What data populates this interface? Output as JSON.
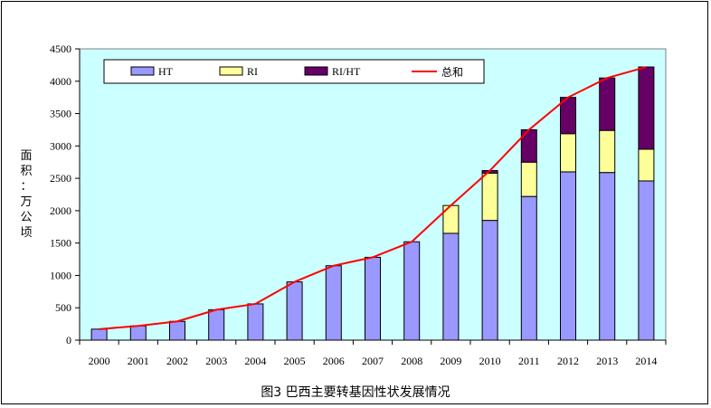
{
  "caption": "图3 巴西主要转基因性状发展情况",
  "colors": {
    "plot_bg": "#CCFFFF",
    "HT": "#9999FF",
    "RI": "#FFFF99",
    "RI/HT": "#660066",
    "total": "#FF0000"
  },
  "chart_data": {
    "type": "bar",
    "stacked": true,
    "title": "",
    "xlabel": "",
    "ylabel": "面积：万公顷",
    "ylim": [
      0,
      4500
    ],
    "yticks": [
      0,
      500,
      1000,
      1500,
      2000,
      2500,
      3000,
      3500,
      4000,
      4500
    ],
    "categories": [
      "2000",
      "2001",
      "2002",
      "2003",
      "2004",
      "2005",
      "2006",
      "2007",
      "2008",
      "2009",
      "2010",
      "2011",
      "2012",
      "2013",
      "2014"
    ],
    "series": [
      {
        "name": "HT",
        "kind": "bar",
        "values": [
          170,
          220,
          290,
          470,
          560,
          900,
          1150,
          1280,
          1520,
          1650,
          1850,
          2220,
          2600,
          2590,
          2460
        ]
      },
      {
        "name": "RI",
        "kind": "bar",
        "values": [
          0,
          0,
          0,
          0,
          0,
          0,
          0,
          0,
          0,
          430,
          730,
          530,
          590,
          650,
          490
        ]
      },
      {
        "name": "RI/HT",
        "kind": "bar",
        "values": [
          0,
          0,
          0,
          0,
          0,
          0,
          0,
          0,
          0,
          0,
          40,
          500,
          560,
          810,
          1270
        ]
      },
      {
        "name": "总和",
        "kind": "line",
        "values": [
          170,
          220,
          290,
          470,
          560,
          900,
          1150,
          1280,
          1520,
          2080,
          2620,
          3250,
          3750,
          4050,
          4220
        ]
      }
    ],
    "legend": {
      "position": "top",
      "entries": [
        "HT",
        "RI",
        "RI/HT",
        "总和"
      ]
    },
    "grid": false
  }
}
